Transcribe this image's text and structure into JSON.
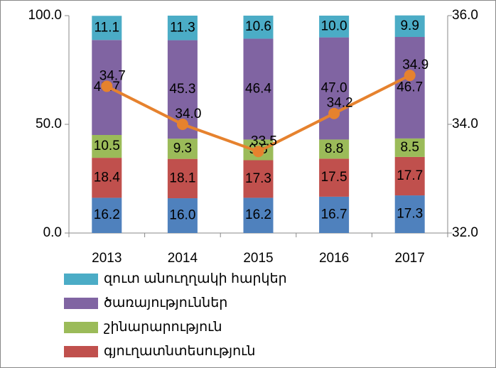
{
  "chart_data": {
    "type": "bar",
    "stacked": true,
    "categories": [
      "2013",
      "2014",
      "2015",
      "2016",
      "2017"
    ],
    "series": [
      {
        "color": "#4f81bd",
        "values": [
          16.2,
          16.0,
          16.2,
          16.7,
          17.3
        ],
        "value_labels": [
          "16.2",
          "16.0",
          "16.2",
          "16.7",
          "17.3"
        ]
      },
      {
        "name": "գյուղատնտեսություն",
        "color": "#c0504d",
        "values": [
          18.4,
          18.1,
          17.3,
          17.5,
          17.7
        ],
        "value_labels": [
          "18.4",
          "18.1",
          "17.3",
          "17.5",
          "17.7"
        ]
      },
      {
        "name": "շինարարություն",
        "color": "#9bbb59",
        "values": [
          10.5,
          9.3,
          9.5,
          8.8,
          8.5
        ],
        "value_labels": [
          "10.5",
          "9.3",
          "9.5",
          "8.8",
          "8.5"
        ]
      },
      {
        "name": "ծառայություններ",
        "color": "#8064a2",
        "values": [
          43.7,
          45.3,
          46.4,
          47.0,
          46.7
        ],
        "value_labels": [
          "43.7",
          "45.3",
          "46.4",
          "47.0",
          "46.7"
        ]
      },
      {
        "name": "զուտ անուղղակի հարկեր",
        "color": "#4bacc6",
        "values": [
          11.1,
          11.3,
          10.6,
          10.0,
          9.9
        ],
        "value_labels": [
          "11.1",
          "11.3",
          "10.6",
          "10.0",
          "9.9"
        ]
      },
      {
        "type": "line",
        "axis": "y2",
        "color": "#e6822e",
        "values": [
          34.7,
          34.0,
          33.5,
          34.2,
          34.9
        ],
        "value_labels": [
          "34.7",
          "34.0",
          "33.5",
          "34.2",
          "34.9"
        ]
      }
    ],
    "ylim": [
      0,
      100
    ],
    "yticks": [
      {
        "value": 0,
        "label": "0.0"
      },
      {
        "value": 50,
        "label": "50.0"
      },
      {
        "value": 100,
        "label": "100.0"
      }
    ],
    "y2lim": [
      32,
      36
    ],
    "y2ticks": [
      {
        "value": 32,
        "label": "32.0"
      },
      {
        "value": 34,
        "label": "34.0"
      },
      {
        "value": 36,
        "label": "36.0"
      }
    ],
    "grid": false,
    "legend": "bottom"
  }
}
